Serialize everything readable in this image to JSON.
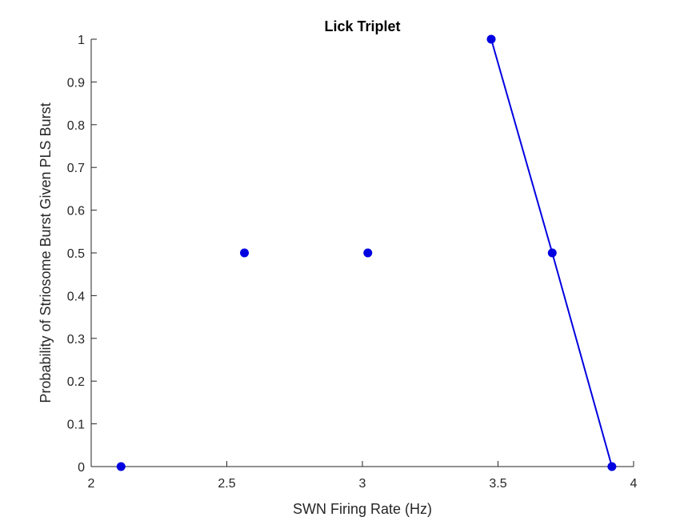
{
  "chart_data": {
    "type": "scatter",
    "title": "Lick Triplet",
    "xlabel": "SWN Firing Rate (Hz)",
    "ylabel": "Probability of Striosome Burst Given PLS Burst",
    "xlim": [
      2,
      4
    ],
    "ylim": [
      0,
      1
    ],
    "xticks": [
      "2",
      "2.5",
      "3",
      "3.5",
      "4"
    ],
    "yticks": [
      "0",
      "0.1",
      "0.2",
      "0.3",
      "0.4",
      "0.5",
      "0.6",
      "0.7",
      "0.8",
      "0.9",
      "1"
    ],
    "grid": false,
    "points": [
      {
        "x": 2.11,
        "y": 0
      },
      {
        "x": 2.565,
        "y": 0.5
      },
      {
        "x": 3.02,
        "y": 0.5
      },
      {
        "x": 3.475,
        "y": 1
      },
      {
        "x": 3.7,
        "y": 0.5
      },
      {
        "x": 3.92,
        "y": 0
      }
    ],
    "line": [
      {
        "x": 3.475,
        "y": 1
      },
      {
        "x": 3.7,
        "y": 0.5
      },
      {
        "x": 3.92,
        "y": 0
      }
    ],
    "color": "#0000e0",
    "axis_color": "#262626"
  }
}
